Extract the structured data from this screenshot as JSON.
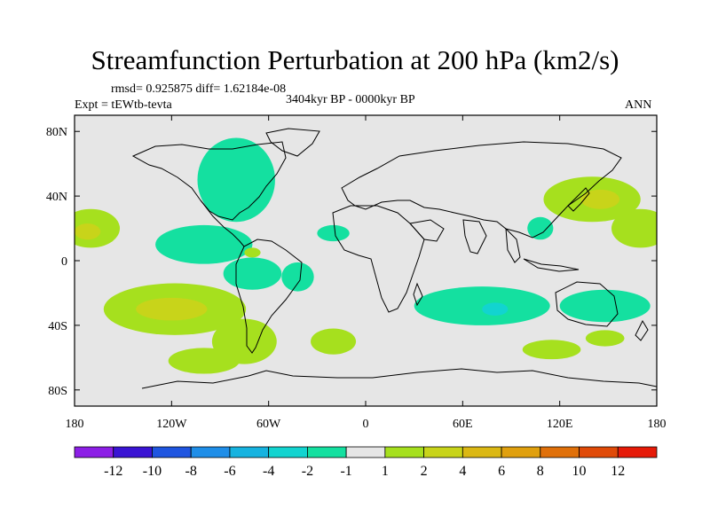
{
  "chart_data": {
    "type": "heatmap",
    "title": "Streamfunction Perturbation at 200 hPa (km2/s)",
    "stats_text": "rmsd= 0.925875 diff= 1.62184e-08",
    "left_label": "Expt = tEWtb-tevta",
    "center_label": "3404kyr BP - 0000kyr BP",
    "right_label": "ANN",
    "x_range": [
      -180,
      180
    ],
    "y_range": [
      -90,
      90
    ],
    "x_ticks": [
      {
        "value": -180,
        "label": "180"
      },
      {
        "value": -120,
        "label": "120W"
      },
      {
        "value": -60,
        "label": "60W"
      },
      {
        "value": 0,
        "label": "0"
      },
      {
        "value": 60,
        "label": "60E"
      },
      {
        "value": 120,
        "label": "120E"
      },
      {
        "value": 180,
        "label": "180"
      }
    ],
    "y_ticks": [
      {
        "value": 80,
        "label": "80N"
      },
      {
        "value": 40,
        "label": "40N"
      },
      {
        "value": 0,
        "label": "0"
      },
      {
        "value": -40,
        "label": "40S"
      },
      {
        "value": -80,
        "label": "80S"
      }
    ],
    "colorbar": {
      "colors": [
        "#8c1fe6",
        "#3a14d4",
        "#1f55e0",
        "#1f8ee8",
        "#16b3e0",
        "#12d4d0",
        "#14e0a0",
        "#e6e6e6",
        "#a6e01e",
        "#c8d41a",
        "#dbb814",
        "#e0a00e",
        "#e0700a",
        "#e04a08",
        "#e61a08"
      ],
      "labels": [
        "-12",
        "-10",
        "-8",
        "-6",
        "-4",
        "-2",
        "-1",
        "1",
        "2",
        "4",
        "6",
        "8",
        "10",
        "12"
      ]
    },
    "anomaly_regions": [
      {
        "level": "-1to-2",
        "lon": -80,
        "lat": 50,
        "rx": 24,
        "ry": 26
      },
      {
        "level": "-1to-2",
        "lon": -100,
        "lat": 10,
        "rx": 30,
        "ry": 12
      },
      {
        "level": "-1to-2",
        "lon": -70,
        "lat": -8,
        "rx": 18,
        "ry": 10
      },
      {
        "level": "-1to-2",
        "lon": -42,
        "lat": -10,
        "rx": 10,
        "ry": 9
      },
      {
        "level": "-1to-2",
        "lon": -20,
        "lat": 17,
        "rx": 10,
        "ry": 5
      },
      {
        "level": "-1to-2",
        "lon": 72,
        "lat": -28,
        "rx": 42,
        "ry": 12
      },
      {
        "level": "-1to-2",
        "lon": 148,
        "lat": -28,
        "rx": 28,
        "ry": 10
      },
      {
        "level": "-1to-2",
        "lon": 108,
        "lat": 20,
        "rx": 8,
        "ry": 7
      },
      {
        "level": "-2to-4",
        "lon": 80,
        "lat": -30,
        "rx": 8,
        "ry": 4
      },
      {
        "level": "1to2",
        "lon": -170,
        "lat": 20,
        "rx": 18,
        "ry": 12
      },
      {
        "level": "1to2",
        "lon": 170,
        "lat": 20,
        "rx": 18,
        "ry": 12
      },
      {
        "level": "1to2",
        "lon": 140,
        "lat": 38,
        "rx": 30,
        "ry": 14
      },
      {
        "level": "1to2",
        "lon": -118,
        "lat": -30,
        "rx": 44,
        "ry": 16
      },
      {
        "level": "1to2",
        "lon": -75,
        "lat": -50,
        "rx": 20,
        "ry": 14
      },
      {
        "level": "1to2",
        "lon": -100,
        "lat": -62,
        "rx": 22,
        "ry": 8
      },
      {
        "level": "1to2",
        "lon": -70,
        "lat": 5,
        "rx": 5,
        "ry": 3
      },
      {
        "level": "1to2",
        "lon": -20,
        "lat": -50,
        "rx": 14,
        "ry": 8
      },
      {
        "level": "1to2",
        "lon": 115,
        "lat": -55,
        "rx": 18,
        "ry": 6
      },
      {
        "level": "1to2",
        "lon": 148,
        "lat": -48,
        "rx": 12,
        "ry": 5
      },
      {
        "level": "2to4",
        "lon": -120,
        "lat": -30,
        "rx": 22,
        "ry": 7
      },
      {
        "level": "2to4",
        "lon": 145,
        "lat": 38,
        "rx": 12,
        "ry": 6
      },
      {
        "level": "2to4",
        "lon": -172,
        "lat": 18,
        "rx": 8,
        "ry": 5
      }
    ]
  }
}
